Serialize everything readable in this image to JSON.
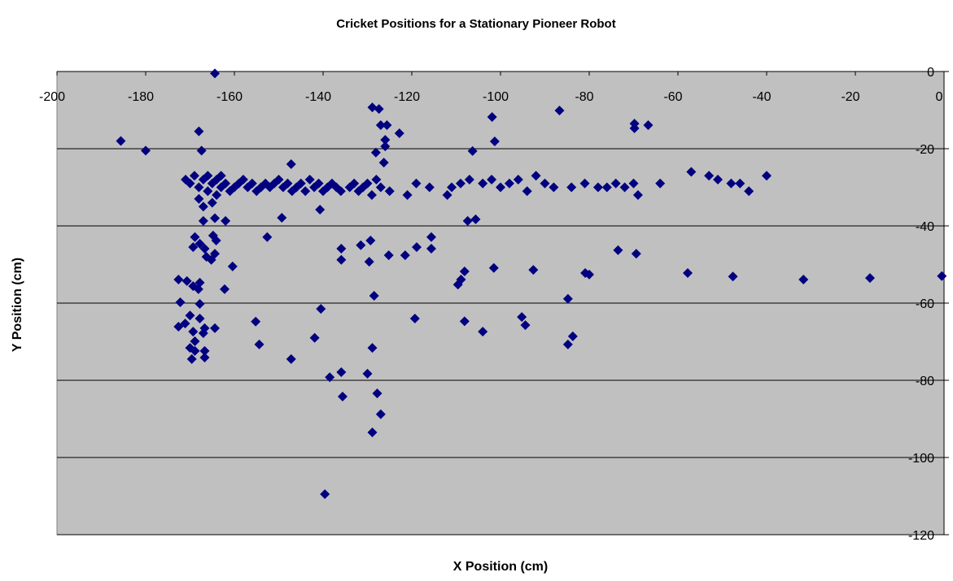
{
  "chart_data": {
    "type": "scatter",
    "title": "Cricket Positions for a Stationary Pioneer Robot",
    "x_label": "X Position (cm)",
    "y_label": "Y Position (cm)",
    "color": "#000080",
    "grid": true,
    "xlim": [
      -200,
      0
    ],
    "ylim": [
      -120,
      0
    ],
    "xticks": [
      -200,
      -180,
      -160,
      -140,
      -120,
      -100,
      -80,
      -60,
      -40,
      -20,
      0
    ],
    "yticks": [
      -120,
      -100,
      -80,
      -60,
      -40,
      -20,
      0
    ],
    "x": [
      -164.4,
      -185.6,
      -180,
      -168,
      -167.4,
      -147.2,
      -128.9,
      -127.4,
      -127,
      -125.6,
      -126,
      -126,
      -122.8,
      -128.1,
      -126.3,
      -101.9,
      -86.7,
      -69.8,
      -69.8,
      -66.7,
      -106.3,
      -101.3,
      -167,
      -164.4,
      -162,
      -152.6,
      -149.3,
      -140.7,
      -135.9,
      -135.9,
      -131.5,
      -129.3,
      -129.6,
      -125.2,
      -121.5,
      -118.9,
      -115.6,
      -115.6,
      -107.4,
      -105.6,
      -108.1,
      -108.9,
      -109.6,
      -101.5,
      -92.6,
      -80.9,
      -80,
      -73.5,
      -69.4,
      -57.8,
      -47.6,
      -31.7,
      -16.7,
      -0.5,
      -172.6,
      -170.7,
      -172.2,
      -172.6,
      -171.1,
      -170,
      -170,
      -169.6,
      -168.9,
      -169.3,
      -168.9,
      -169.3,
      -168.1,
      -167.8,
      -167.8,
      -167.8,
      -166.7,
      -167,
      -166.7,
      -166.7,
      -164.4,
      -168.9,
      -169.3,
      -167.8,
      -166.7,
      -166.3,
      -165.2,
      -164.8,
      -164.1,
      -164.4,
      -160.4,
      -162.2,
      -155.2,
      -154.4,
      -147.2,
      -140.5,
      -141.9,
      -138.5,
      -135.9,
      -135.6,
      -139.6,
      -130,
      -128.9,
      -128.5,
      -127.8,
      -127,
      -128.9,
      -119.3,
      -108.1,
      -104,
      -95.2,
      -94.4,
      -84.8,
      -84.8,
      -83.7,
      -171,
      -170,
      -169,
      -168,
      -168,
      -167,
      -167,
      -166,
      -166,
      -165,
      -165,
      -164,
      -164,
      -163,
      -163,
      -162,
      -161,
      -160,
      -159,
      -158,
      -157,
      -156,
      -155,
      -154,
      -153,
      -152,
      -151,
      -150,
      -149,
      -148,
      -147,
      -146,
      -145,
      -144,
      -143,
      -142,
      -141,
      -140,
      -139,
      -138,
      -137,
      -136,
      -134,
      -133,
      -132,
      -131,
      -130,
      -129,
      -128,
      -127,
      -125,
      -121,
      -119,
      -116,
      -112,
      -111,
      -109,
      -107,
      -104,
      -102,
      -100,
      -98,
      -96,
      -94,
      -92,
      -90,
      -88,
      -84,
      -81,
      -78,
      -76,
      -74,
      -72,
      -70,
      -69,
      -64,
      -57,
      -53,
      -51,
      -48,
      -46,
      -44,
      -40
    ],
    "values": [
      -0.5,
      -18,
      -20.5,
      -15.5,
      -20.5,
      -24,
      -9.3,
      -9.7,
      -13.9,
      -13.9,
      -17.7,
      -19.4,
      -16,
      -21,
      -23.6,
      -11.8,
      -10.1,
      -13.5,
      -14.7,
      -13.9,
      -20.6,
      -18.1,
      -38.7,
      -38,
      -38.7,
      -42.9,
      -37.9,
      -35.8,
      -45.9,
      -48.8,
      -45,
      -43.8,
      -49.3,
      -47.6,
      -47.6,
      -45.5,
      -42.9,
      -45.9,
      -38.7,
      -38.3,
      -51.8,
      -53.9,
      -55.2,
      -50.9,
      -51.4,
      -52.2,
      -52.6,
      -46.3,
      -47.2,
      -52.2,
      -53.1,
      -53.9,
      -53.5,
      -53,
      -53.9,
      -54.3,
      -59.8,
      -66.1,
      -65.3,
      -63.2,
      -71.6,
      -74.5,
      -72.4,
      -67.4,
      -69.9,
      -55.6,
      -56.4,
      -54.7,
      -60.2,
      -64,
      -66.5,
      -67.8,
      -72.4,
      -74.1,
      -66.5,
      -42.9,
      -45.5,
      -44.6,
      -45.9,
      -48,
      -48.8,
      -42.5,
      -43.8,
      -47.2,
      -50.5,
      -56.4,
      -64.8,
      -70.7,
      -74.5,
      -61.5,
      -69,
      -79.2,
      -77.9,
      -84.2,
      -109.5,
      -78.3,
      -71.6,
      -58.1,
      -83.4,
      -88.8,
      -93.5,
      -64,
      -64.7,
      -67.4,
      -63.6,
      -65.7,
      -58.9,
      -70.7,
      -68.6,
      -28,
      -29,
      -27,
      -30,
      -33,
      -28,
      -35,
      -31,
      -27,
      -29,
      -34,
      -28,
      -32,
      -30,
      -27,
      -29,
      -31,
      -30,
      -29,
      -28,
      -30,
      -29,
      -31,
      -30,
      -29,
      -30,
      -29,
      -28,
      -30,
      -29,
      -31,
      -30,
      -29,
      -31,
      -28,
      -30,
      -29,
      -31,
      -30,
      -29,
      -30,
      -31,
      -30,
      -29,
      -31,
      -30,
      -29,
      -32,
      -28,
      -30,
      -31,
      -32,
      -29,
      -30,
      -32,
      -30,
      -29,
      -28,
      -29,
      -28,
      -30,
      -29,
      -28,
      -31,
      -27,
      -29,
      -30,
      -30,
      -29,
      -30,
      -30,
      -29,
      -30,
      -29,
      -32,
      -29,
      -26,
      -27,
      -28,
      -29,
      -29,
      -31,
      -27
    ]
  }
}
